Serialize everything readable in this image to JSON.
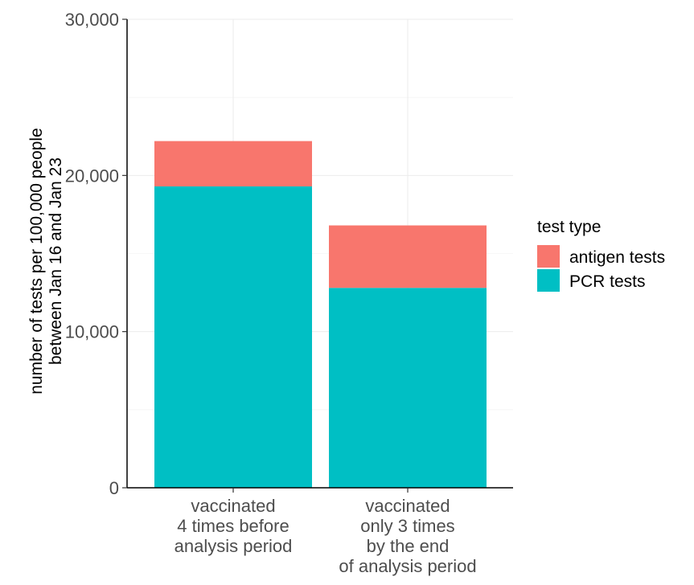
{
  "chart_data": {
    "type": "bar",
    "stacked": true,
    "categories": [
      [
        "vaccinated",
        "4 times before",
        "analysis period"
      ],
      [
        "vaccinated",
        "only 3 times",
        "by the end",
        "of analysis period"
      ]
    ],
    "series": [
      {
        "name": "PCR tests",
        "values": [
          19300,
          12800
        ],
        "color": "#00BFC4"
      },
      {
        "name": "antigen tests",
        "values": [
          2900,
          4000
        ],
        "color": "#F8766D"
      }
    ],
    "ylabel": [
      "number of tests per 100,000 people",
      "between Jan 16 and Jan 23"
    ],
    "xlabel": "",
    "ylim": [
      0,
      30000
    ],
    "yticks": [
      0,
      10000,
      20000,
      30000
    ],
    "ytick_labels": [
      "0",
      "10,000",
      "20,000",
      "30,000"
    ],
    "grid": true,
    "legend": {
      "title": "test type",
      "position": "right",
      "items": [
        {
          "label": "antigen tests",
          "color": "#F8766D"
        },
        {
          "label": "PCR tests",
          "color": "#00BFC4"
        }
      ]
    }
  }
}
